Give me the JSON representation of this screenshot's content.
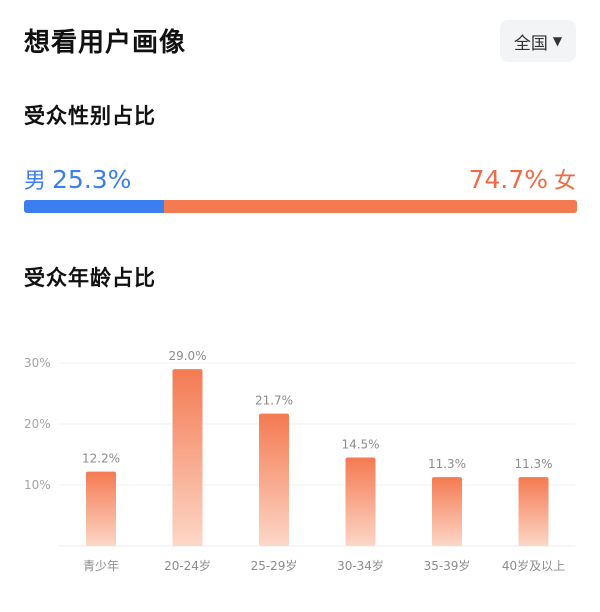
{
  "header": {
    "title": "想看用户画像",
    "region": "全国",
    "region_caret": "▼"
  },
  "gender": {
    "title": "受众性别占比",
    "male": {
      "symbol": "男",
      "percent": "25.3%",
      "value": 25.3
    },
    "female": {
      "symbol": "女",
      "percent": "74.7%",
      "value": 74.7
    },
    "colors": {
      "male": "#3b7ef0",
      "female": "#f26a44"
    }
  },
  "age": {
    "title": "受众年龄占比"
  },
  "chart_data": {
    "type": "bar",
    "categories": [
      "青少年",
      "20-24岁",
      "25-29岁",
      "30-34岁",
      "35-39岁",
      "40岁及以上"
    ],
    "values": [
      12.2,
      29.0,
      21.7,
      14.5,
      11.3,
      11.3
    ],
    "data_labels": [
      "12.2%",
      "29.0%",
      "21.7%",
      "14.5%",
      "11.3%",
      "11.3%"
    ],
    "yticks": [
      10,
      20,
      30
    ],
    "ytick_labels": [
      "10%",
      "20%",
      "30%"
    ],
    "ylim": [
      0,
      30
    ],
    "grid": true,
    "bar_color_top": "#f47a52",
    "bar_color_bottom": "#fcd7c7",
    "title": "",
    "xlabel": "",
    "ylabel": ""
  }
}
